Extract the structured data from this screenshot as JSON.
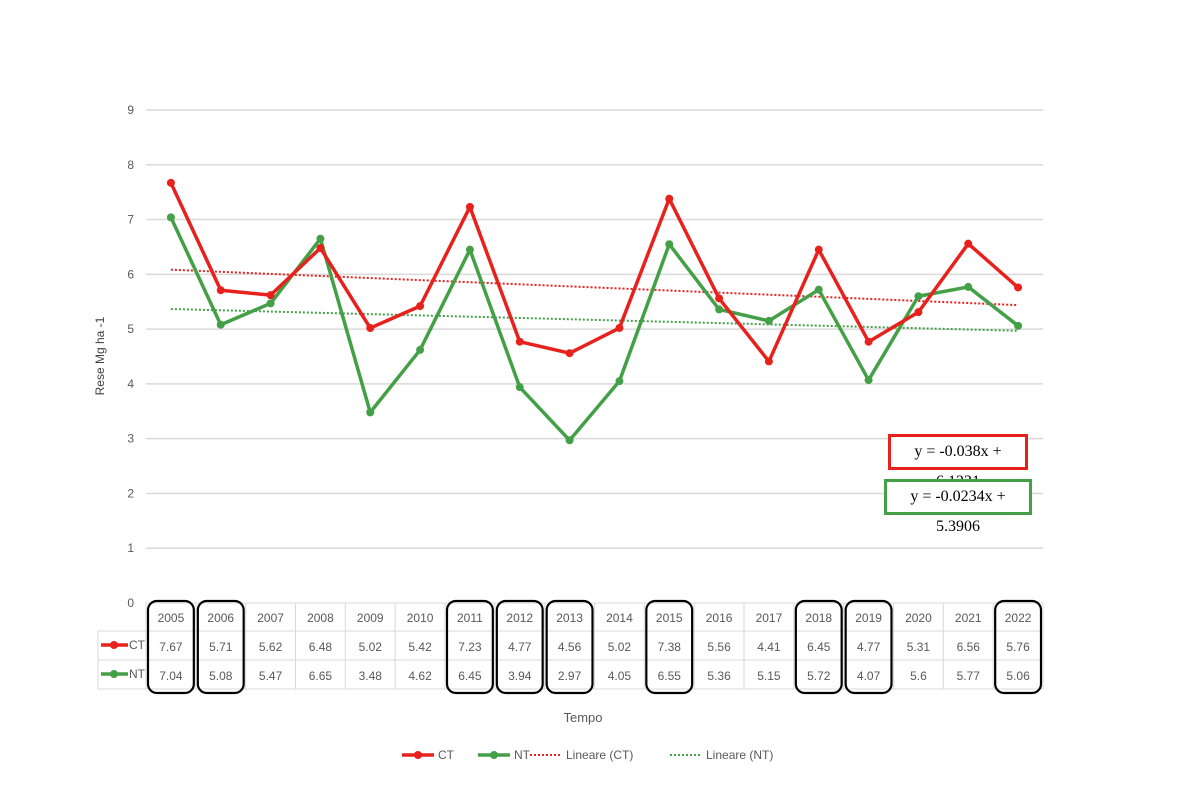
{
  "chart_data": {
    "type": "line",
    "title": "",
    "xlabel": "Tempo",
    "ylabel": "Rese Mg ha -1",
    "ylim": [
      0,
      9
    ],
    "yticks": [
      "0",
      "1",
      "2",
      "3",
      "4",
      "5",
      "6",
      "7",
      "8",
      "9"
    ],
    "grid": true,
    "legend_position": "bottom",
    "categories": [
      "2005",
      "2006",
      "2007",
      "2008",
      "2009",
      "2010",
      "2011",
      "2012",
      "2013",
      "2014",
      "2015",
      "2016",
      "2017",
      "2018",
      "2019",
      "2020",
      "2021",
      "2022"
    ],
    "highlighted": [
      "2005",
      "2006",
      "2011",
      "2012",
      "2013",
      "2015",
      "2018",
      "2019",
      "2022"
    ],
    "series": [
      {
        "name": "CT",
        "color": "#e8211d",
        "values": [
          7.67,
          5.71,
          5.62,
          6.48,
          5.02,
          5.42,
          7.23,
          4.77,
          4.56,
          5.02,
          7.38,
          5.56,
          4.41,
          6.45,
          4.77,
          5.31,
          6.56,
          5.76
        ]
      },
      {
        "name": "NT",
        "color": "#43a047",
        "values": [
          7.04,
          5.08,
          5.47,
          6.65,
          3.48,
          4.62,
          6.45,
          3.94,
          2.97,
          4.05,
          6.55,
          5.36,
          5.15,
          5.72,
          4.07,
          5.6,
          5.77,
          5.06
        ]
      }
    ],
    "trendlines": [
      {
        "name": "Lineare (CT)",
        "color": "#e8211d",
        "slope": -0.038,
        "intercept": 6.1221,
        "equation": "y = -0.038x + 6.1221"
      },
      {
        "name": "Lineare (NT)",
        "color": "#43a047",
        "slope": -0.0234,
        "intercept": 5.3906,
        "equation": "y = -0.0234x + 5.3906"
      }
    ]
  }
}
